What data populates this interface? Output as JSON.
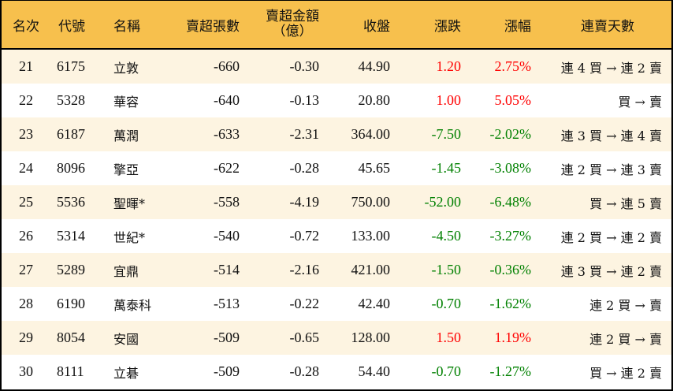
{
  "table": {
    "headers": {
      "rank": "名次",
      "code": "代號",
      "name": "名稱",
      "net_sell_volume": "賣超張數",
      "net_sell_amount_line1": "賣超金額",
      "net_sell_amount_line2": "（億）",
      "close": "收盤",
      "change": "漲跌",
      "change_pct": "漲幅",
      "consecutive_days": "連賣天數"
    },
    "colors": {
      "header_bg": "#f7c04d",
      "row_odd_bg": "#fdf4e1",
      "row_even_bg": "#ffffff",
      "up": "#ff0000",
      "down": "#008000"
    },
    "rows": [
      {
        "rank": "21",
        "code": "6175",
        "name": "立敦",
        "vol": "-660",
        "amt": "-0.30",
        "close": "44.90",
        "chg": "1.20",
        "pct": "2.75%",
        "dir": "up",
        "days": "連 4 買 → 連 2 賣"
      },
      {
        "rank": "22",
        "code": "5328",
        "name": "華容",
        "vol": "-640",
        "amt": "-0.13",
        "close": "20.80",
        "chg": "1.00",
        "pct": "5.05%",
        "dir": "up",
        "days": "買 → 賣"
      },
      {
        "rank": "23",
        "code": "6187",
        "name": "萬潤",
        "vol": "-633",
        "amt": "-2.31",
        "close": "364.00",
        "chg": "-7.50",
        "pct": "-2.02%",
        "dir": "down",
        "days": "連 3 買 → 連 4 賣"
      },
      {
        "rank": "24",
        "code": "8096",
        "name": "擎亞",
        "vol": "-622",
        "amt": "-0.28",
        "close": "45.65",
        "chg": "-1.45",
        "pct": "-3.08%",
        "dir": "down",
        "days": "連 2 買 → 連 3 賣"
      },
      {
        "rank": "25",
        "code": "5536",
        "name": "聖暉*",
        "vol": "-558",
        "amt": "-4.19",
        "close": "750.00",
        "chg": "-52.00",
        "pct": "-6.48%",
        "dir": "down",
        "days": "買 → 連 5 賣"
      },
      {
        "rank": "26",
        "code": "5314",
        "name": "世紀*",
        "vol": "-540",
        "amt": "-0.72",
        "close": "133.00",
        "chg": "-4.50",
        "pct": "-3.27%",
        "dir": "down",
        "days": "連 2 買 → 連 2 賣"
      },
      {
        "rank": "27",
        "code": "5289",
        "name": "宜鼎",
        "vol": "-514",
        "amt": "-2.16",
        "close": "421.00",
        "chg": "-1.50",
        "pct": "-0.36%",
        "dir": "down",
        "days": "連 3 買 → 連 2 賣"
      },
      {
        "rank": "28",
        "code": "6190",
        "name": "萬泰科",
        "vol": "-513",
        "amt": "-0.22",
        "close": "42.40",
        "chg": "-0.70",
        "pct": "-1.62%",
        "dir": "down",
        "days": "連 2 買 → 賣"
      },
      {
        "rank": "29",
        "code": "8054",
        "name": "安國",
        "vol": "-509",
        "amt": "-0.65",
        "close": "128.00",
        "chg": "1.50",
        "pct": "1.19%",
        "dir": "up",
        "days": "連 2 買 → 賣"
      },
      {
        "rank": "30",
        "code": "8111",
        "name": "立碁",
        "vol": "-509",
        "amt": "-0.28",
        "close": "54.40",
        "chg": "-0.70",
        "pct": "-1.27%",
        "dir": "down",
        "days": "買 → 連 2 賣"
      }
    ]
  }
}
